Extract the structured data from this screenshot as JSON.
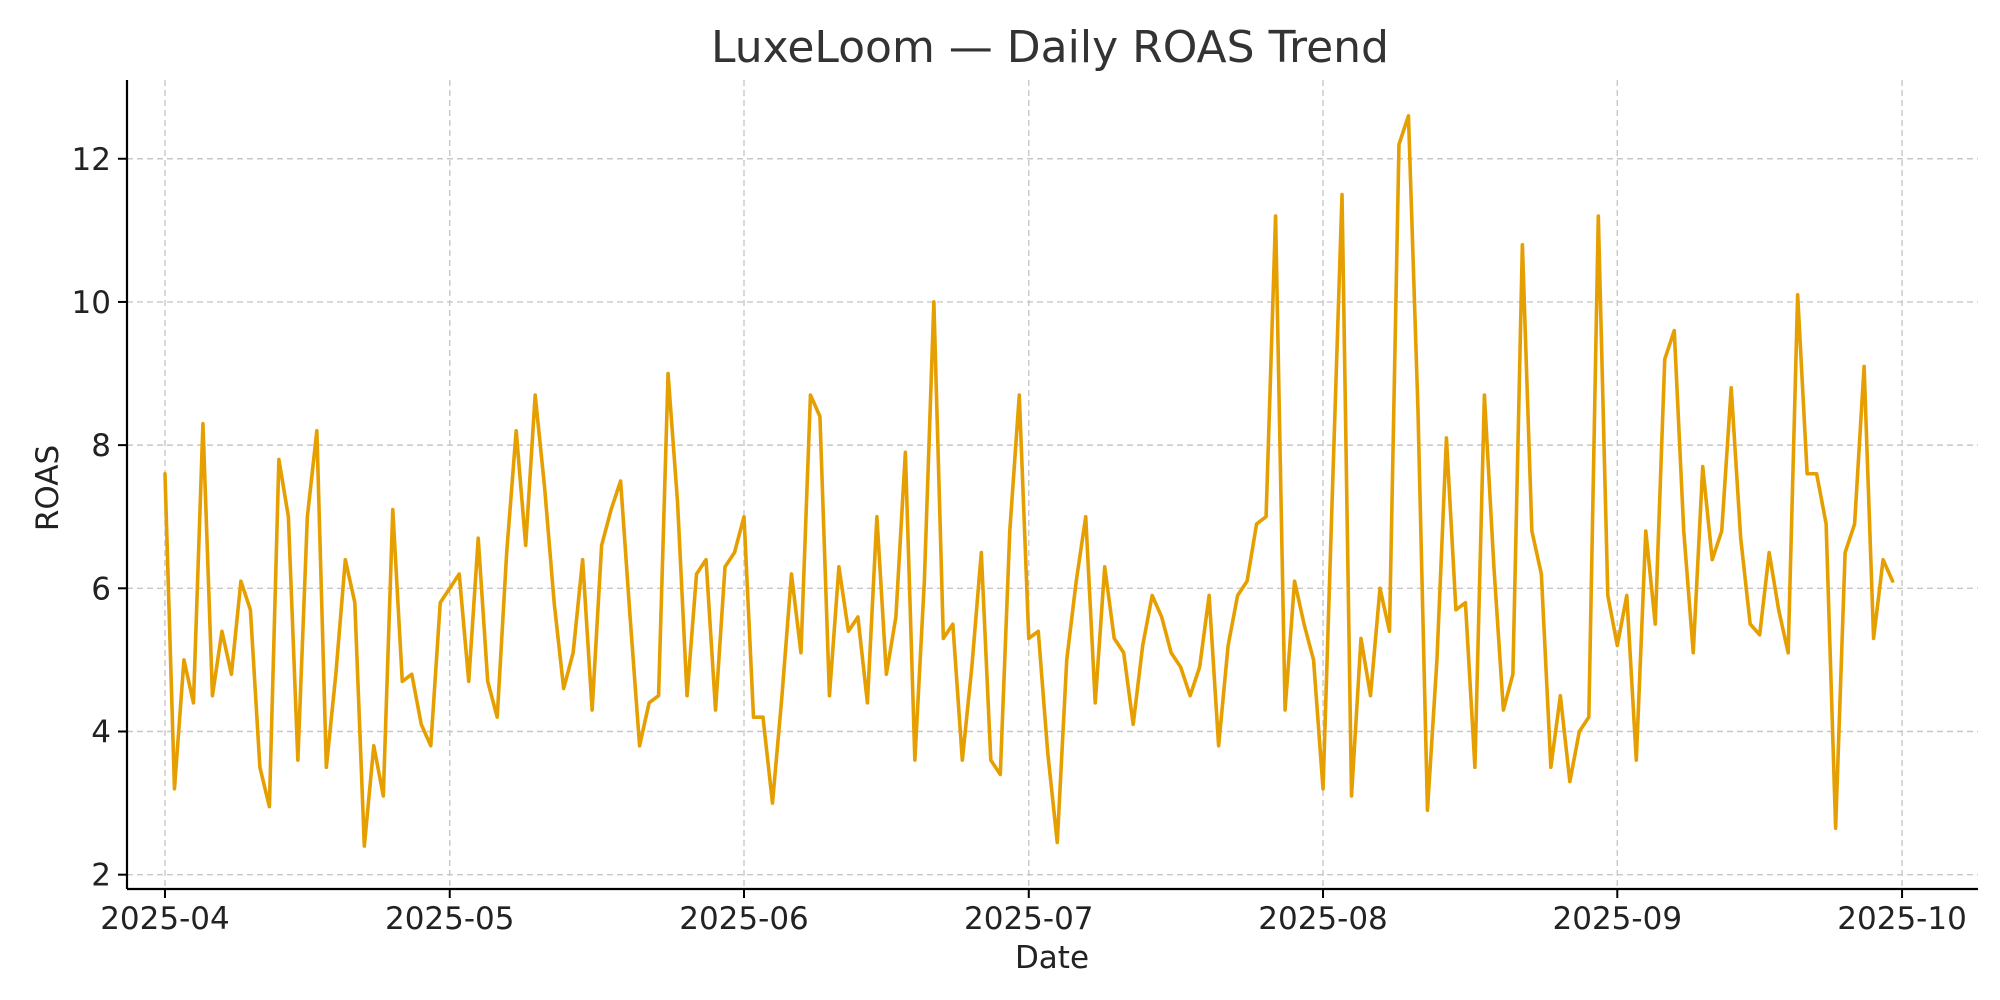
{
  "chart_data": {
    "type": "line",
    "title": "LuxeLoom — Daily ROAS Trend",
    "xlabel": "Date",
    "ylabel": "ROAS",
    "x_start": "2025-04-01",
    "x_end": "2025-09-30",
    "xlim": [
      "2025-03-28",
      "2025-10-09"
    ],
    "ylim": [
      1.8,
      13.1
    ],
    "x_ticks": [
      "2025-04-01",
      "2025-05-01",
      "2025-06-01",
      "2025-07-01",
      "2025-08-01",
      "2025-09-01",
      "2025-10-01"
    ],
    "x_tick_labels": [
      "2025-04",
      "2025-05",
      "2025-06",
      "2025-07",
      "2025-08",
      "2025-09",
      "2025-10"
    ],
    "y_ticks": [
      2,
      4,
      6,
      8,
      10,
      12
    ],
    "y_tick_labels": [
      "2",
      "4",
      "6",
      "8",
      "10",
      "12"
    ],
    "grid": true,
    "color": "#E69F00",
    "series": [
      {
        "values": [
          7.6,
          3.2,
          5.0,
          4.4,
          8.3,
          4.5,
          5.4,
          4.8,
          6.1,
          5.7,
          3.5,
          2.95,
          7.8,
          7.0,
          3.6,
          7.0,
          8.2,
          3.5,
          4.8,
          6.4,
          5.8,
          2.4,
          3.8,
          3.1,
          7.1,
          4.7,
          4.8,
          4.1,
          3.8,
          5.8,
          6.0,
          6.2,
          4.7,
          6.7,
          4.7,
          4.2,
          6.5,
          8.2,
          6.6,
          8.7,
          7.4,
          5.8,
          4.6,
          5.1,
          6.4,
          4.3,
          6.6,
          7.1,
          7.5,
          5.6,
          3.8,
          4.4,
          4.5,
          9.0,
          7.2,
          4.5,
          6.2,
          6.4,
          4.3,
          6.3,
          6.5,
          7.0,
          4.2,
          4.2,
          3.0,
          4.5,
          6.2,
          5.1,
          8.7,
          8.4,
          4.5,
          6.3,
          5.4,
          5.6,
          4.4,
          7.0,
          4.8,
          5.6,
          7.9,
          3.6,
          6.1,
          10.0,
          5.3,
          5.5,
          3.6,
          4.9,
          6.5,
          3.6,
          3.4,
          6.8,
          8.7,
          5.3,
          5.4,
          3.7,
          2.45,
          5.0,
          6.1,
          7.0,
          4.4,
          6.3,
          5.3,
          5.1,
          4.1,
          5.2,
          5.9,
          5.6,
          5.1,
          4.9,
          4.5,
          4.9,
          5.9,
          3.8,
          5.2,
          5.9,
          6.1,
          6.9,
          7.0,
          11.2,
          4.3,
          6.1,
          5.5,
          5.0,
          3.2,
          7.4,
          11.5,
          3.1,
          5.3,
          4.5,
          6.0,
          5.4,
          12.2,
          12.6,
          8.5,
          2.9,
          5.0,
          8.1,
          5.7,
          5.8,
          3.5,
          8.7,
          6.3,
          4.3,
          4.8,
          10.8,
          6.8,
          6.2,
          3.5,
          4.5,
          3.3,
          4.0,
          4.2,
          11.2,
          5.9,
          5.2,
          5.9,
          3.6,
          6.8,
          5.5,
          9.2,
          9.6,
          6.8,
          5.1,
          7.7,
          6.4,
          6.8,
          8.8,
          6.7,
          5.5,
          5.35,
          6.5,
          5.7,
          5.1,
          10.1,
          7.6,
          7.6,
          6.9,
          2.65,
          6.5,
          6.9,
          9.1,
          5.3,
          6.4,
          6.1
        ]
      }
    ]
  }
}
